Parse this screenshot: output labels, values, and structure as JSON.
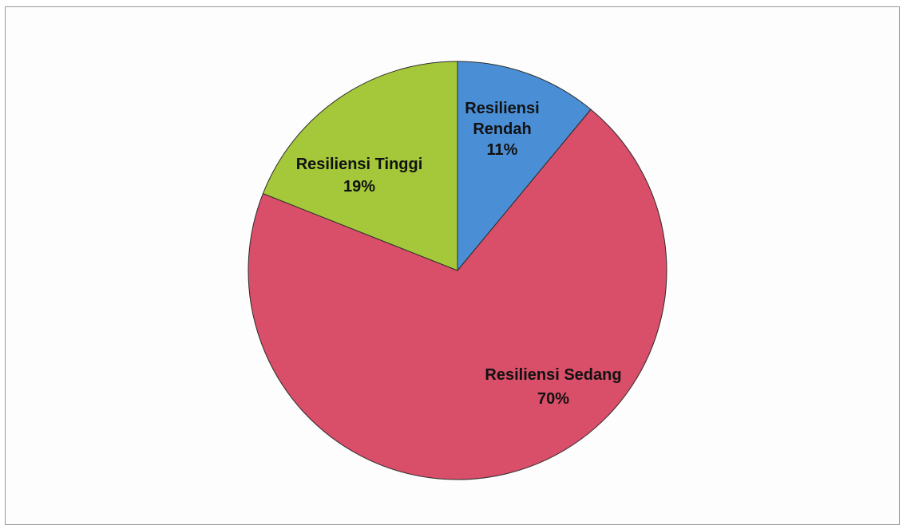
{
  "chart_data": {
    "type": "pie",
    "title": "",
    "start_angle_deg": 0,
    "direction": "clockwise",
    "slices": [
      {
        "label_lines": [
          "Resiliensi",
          "Rendah"
        ],
        "value": 11,
        "value_label": "11%",
        "color": "#4a8fd6"
      },
      {
        "label_lines": [
          "Resiliensi Sedang"
        ],
        "value": 70,
        "value_label": "70%",
        "color": "#d94e68"
      },
      {
        "label_lines": [
          "Resiliensi Tinggi"
        ],
        "value": 19,
        "value_label": "19%",
        "color": "#a5c83a"
      }
    ],
    "legend": "none"
  }
}
